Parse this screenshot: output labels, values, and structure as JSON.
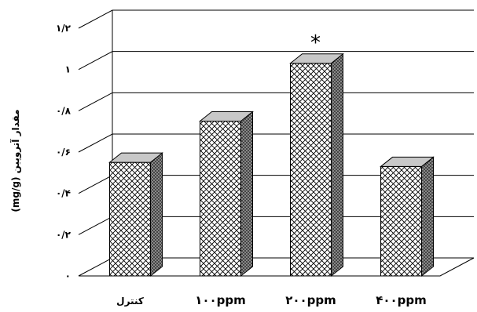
{
  "chart_data": {
    "type": "bar",
    "style": "3d",
    "categories": [
      "کنترل",
      "۱۰۰ppm",
      "۲۰۰ppm",
      "۴۰۰ppm"
    ],
    "values": [
      0.55,
      0.75,
      1.03,
      0.53
    ],
    "annotations": [
      {
        "category_index": 2,
        "text": "*"
      }
    ],
    "ylabel": "مقدار آتروپین (mg/g)",
    "yticks": [
      {
        "value": 0,
        "label": "۰"
      },
      {
        "value": 0.2,
        "label": "۰/۲"
      },
      {
        "value": 0.4,
        "label": "۰/۴"
      },
      {
        "value": 0.6,
        "label": "۰/۶"
      },
      {
        "value": 0.8,
        "label": "۰/۸"
      },
      {
        "value": 1.0,
        "label": "۱"
      },
      {
        "value": 1.2,
        "label": "۱/۲"
      }
    ],
    "ylim": [
      0,
      1.2
    ],
    "grid": true,
    "legend": "none",
    "colors": {
      "bar_pattern_line": "#000000",
      "bar_top": "#c8c8c8",
      "bar_side": "#8a8a8a",
      "grid": "#000000"
    }
  }
}
